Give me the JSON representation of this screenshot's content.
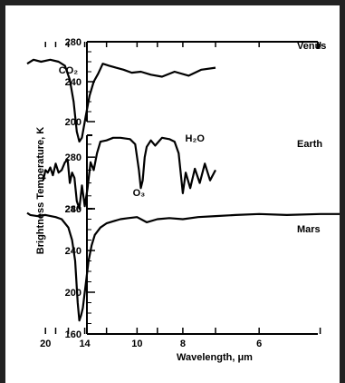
{
  "chart_data": {
    "type": "line",
    "xlabel": "Wavelength, μm",
    "ylabel": "Brightness Temperature, K",
    "x_scale": "reciprocal",
    "x_ticks": [
      "6",
      "8",
      "10",
      "14",
      "20"
    ],
    "grid": false,
    "panels": [
      {
        "name": "Venus",
        "ylim": [
          200,
          280
        ],
        "y_ticks": [
          "280",
          "240",
          "200"
        ],
        "annotations": [
          {
            "text": "CO₂",
            "x": 16.0,
            "y": 248
          }
        ],
        "series": [
          {
            "name": "Venus",
            "x": [
              7.0,
              7.4,
              7.8,
              8.3,
              8.8,
              9.3,
              9.8,
              10.3,
              10.8,
              11.3,
              11.8,
              12.3,
              12.7,
              13.1,
              13.5,
              13.9,
              14.3,
              14.6,
              14.9,
              15.3,
              15.8,
              16.5,
              17.5,
              19.0,
              21.0,
              23.0,
              25.0
            ],
            "y": [
              254,
              252,
              246,
              250,
              245,
              247,
              250,
              249,
              252,
              254,
              256,
              258,
              248,
              240,
              226,
              205,
              184,
              180,
              190,
              220,
              242,
              256,
              260,
              262,
              260,
              262,
              258
            ]
          }
        ]
      },
      {
        "name": "Earth",
        "ylim": [
          240,
          300
        ],
        "y_ticks": [
          "280",
          "240"
        ],
        "annotations": [
          {
            "text": "H₂O",
            "x": 7.6,
            "y": 292
          },
          {
            "text": "O₃",
            "x": 9.9,
            "y": 250
          }
        ],
        "series": [
          {
            "name": "Earth",
            "x": [
              7.0,
              7.15,
              7.3,
              7.45,
              7.6,
              7.75,
              7.9,
              8.0,
              8.15,
              8.3,
              8.5,
              8.8,
              9.1,
              9.3,
              9.5,
              9.6,
              9.7,
              9.8,
              9.9,
              10.1,
              10.4,
              11.0,
              11.5,
              12.0,
              12.5,
              12.8,
              13.1,
              13.4,
              13.7,
              14.0,
              14.3,
              14.6,
              14.9,
              15.2,
              15.5,
              15.8,
              16.1,
              16.5,
              17.0,
              17.5,
              18.0,
              18.5,
              19.0,
              19.5,
              20.0,
              20.5
            ],
            "y": [
              270,
              262,
              275,
              260,
              271,
              256,
              268,
              252,
              283,
              292,
              294,
              295,
              289,
              293,
              288,
              280,
              262,
              256,
              270,
              290,
              294,
              295,
              295,
              293,
              292,
              283,
              270,
              276,
              256,
              242,
              258,
              240,
              246,
              264,
              268,
              260,
              278,
              276,
              270,
              268,
              275,
              266,
              272,
              268,
              270,
              262
            ]
          }
        ]
      },
      {
        "name": "Mars",
        "ylim": [
          160,
          280
        ],
        "y_ticks": [
          "280",
          "240",
          "200",
          "160"
        ],
        "series": [
          {
            "name": "Mars",
            "x": [
              4.5,
              5.0,
              5.5,
              6.0,
              6.5,
              7.0,
              7.5,
              8.0,
              8.5,
              9.0,
              9.5,
              10.0,
              10.5,
              11.0,
              11.5,
              12.0,
              12.5,
              13.0,
              13.3,
              13.6,
              13.8,
              14.0,
              14.2,
              14.4,
              14.6,
              14.8,
              15.1,
              15.5,
              16.0,
              17.0,
              18.0,
              20.0,
              22.0,
              24.0,
              25.0
            ],
            "y": [
              275,
              275,
              274,
              275,
              274,
              273,
              272,
              270,
              271,
              270,
              267,
              272,
              271,
              270,
              268,
              266,
              262,
              255,
              245,
              230,
              215,
              200,
              185,
              178,
              173,
              190,
              230,
              250,
              262,
              270,
              272,
              274,
              273,
              274,
              276
            ]
          }
        ]
      }
    ]
  }
}
